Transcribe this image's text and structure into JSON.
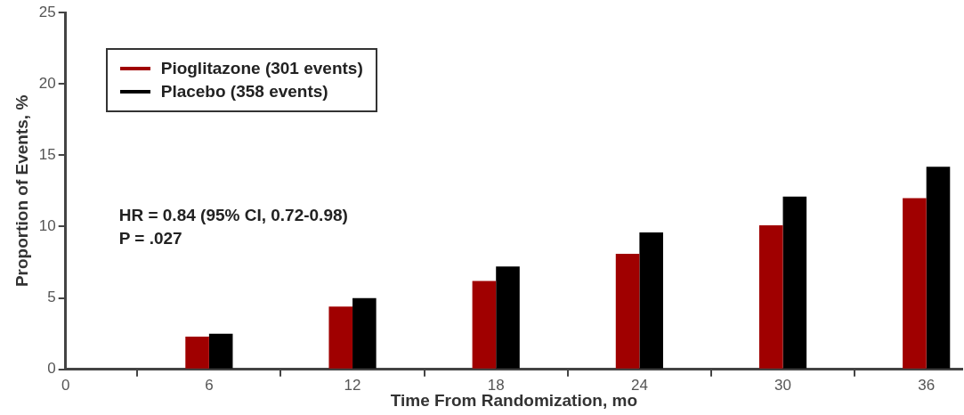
{
  "chart_data": {
    "type": "bar",
    "xlabel": "Time From Randomization, mo",
    "ylabel": "Proportion of Events, %",
    "x": [
      6,
      12,
      18,
      24,
      30,
      36
    ],
    "series": [
      {
        "name": "Pioglitazone (301 events)",
        "color": "#a00000",
        "values": [
          2.3,
          4.4,
          6.2,
          8.1,
          10.1,
          12.0
        ]
      },
      {
        "name": "Placebo (358 events)",
        "color": "#000000",
        "values": [
          2.5,
          5.0,
          7.2,
          9.6,
          12.1,
          14.2
        ]
      }
    ],
    "xlim": [
      0,
      37.5
    ],
    "xticks": [
      0,
      6,
      12,
      18,
      24,
      30,
      36
    ],
    "ylim": [
      0,
      25
    ],
    "yticks": [
      0,
      5,
      10,
      15,
      20,
      25
    ],
    "grid": false,
    "legend": "top left",
    "annotations": [
      "HR = 0.84 (95% CI, 0.72-0.98)",
      "P = .027"
    ]
  }
}
